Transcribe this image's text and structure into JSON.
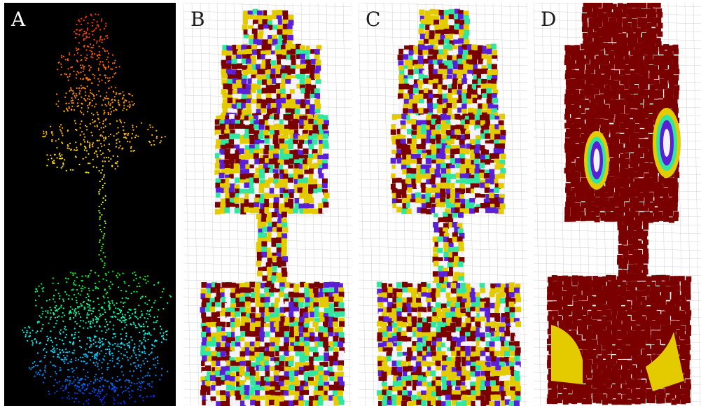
{
  "panels": [
    {
      "id": "a",
      "label": "A"
    },
    {
      "id": "b",
      "label": "B"
    },
    {
      "id": "c",
      "label": "C"
    },
    {
      "id": "d",
      "label": "D"
    }
  ],
  "colors": {
    "background_a": "#000000",
    "label_a": "#ffffff",
    "label_other": "#1a1a1a",
    "voxel_maroon": "#7a0000",
    "voxel_yellow": "#e3cb00",
    "voxel_green": "#33e6a0",
    "voxel_purple": "#5a1fd6",
    "voxel_white": "#f2f2f8",
    "grid": "#d0d0d0"
  }
}
